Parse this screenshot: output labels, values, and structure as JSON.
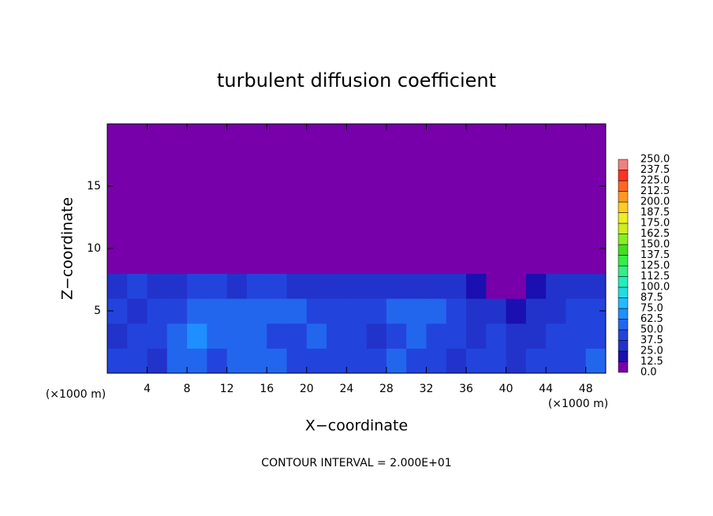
{
  "chart_data": {
    "type": "heatmap",
    "title": "turbulent diffusion coefficient",
    "xlabel": "X−coordinate",
    "ylabel": "Z−coordinate",
    "xunit": "(×1000 m)",
    "yunit": "(×1000 m)",
    "note": "CONTOUR INTERVAL = 2.000E+01",
    "xlim": [
      0,
      50
    ],
    "ylim": [
      0,
      20
    ],
    "xticks": [
      4,
      8,
      12,
      16,
      20,
      24,
      28,
      32,
      36,
      40,
      44,
      48
    ],
    "yticks": [
      5,
      10,
      15
    ],
    "x": [
      1,
      3,
      5,
      7,
      9,
      11,
      13,
      15,
      17,
      19,
      21,
      23,
      25,
      27,
      29,
      31,
      33,
      35,
      37,
      39,
      41,
      43,
      45,
      47,
      49
    ],
    "y": [
      1,
      3,
      5,
      7,
      9,
      11,
      13,
      15,
      17,
      19
    ],
    "values": [
      [
        40,
        45,
        35,
        50,
        60,
        40,
        55,
        60,
        50,
        45,
        45,
        40,
        45,
        40,
        50,
        45,
        40,
        35,
        45,
        40,
        35,
        45,
        40,
        45,
        50
      ],
      [
        35,
        40,
        45,
        55,
        65,
        50,
        55,
        60,
        45,
        45,
        50,
        40,
        40,
        35,
        45,
        50,
        45,
        40,
        35,
        40,
        30,
        35,
        40,
        40,
        45
      ],
      [
        40,
        35,
        40,
        45,
        50,
        55,
        50,
        60,
        55,
        50,
        45,
        40,
        45,
        40,
        50,
        55,
        60,
        45,
        35,
        30,
        20,
        30,
        35,
        40,
        40
      ],
      [
        35,
        40,
        30,
        35,
        45,
        40,
        35,
        45,
        40,
        35,
        30,
        25,
        30,
        30,
        25,
        30,
        35,
        25,
        20,
        10,
        0,
        15,
        25,
        30,
        35
      ],
      [
        0,
        0,
        0,
        0,
        0,
        0,
        0,
        0,
        0,
        0,
        0,
        0,
        0,
        0,
        0,
        0,
        0,
        0,
        0,
        0,
        0,
        0,
        0,
        0,
        0
      ],
      [
        0,
        0,
        0,
        0,
        0,
        0,
        0,
        0,
        0,
        0,
        0,
        0,
        0,
        0,
        0,
        0,
        0,
        0,
        0,
        0,
        0,
        0,
        0,
        0,
        0
      ],
      [
        0,
        0,
        0,
        0,
        0,
        0,
        0,
        0,
        0,
        0,
        0,
        0,
        0,
        0,
        0,
        0,
        0,
        0,
        0,
        0,
        0,
        0,
        0,
        0,
        0
      ],
      [
        0,
        0,
        0,
        0,
        0,
        0,
        0,
        0,
        0,
        0,
        0,
        0,
        0,
        0,
        0,
        0,
        0,
        0,
        0,
        0,
        0,
        0,
        0,
        0,
        0
      ],
      [
        0,
        0,
        0,
        0,
        0,
        0,
        0,
        0,
        0,
        0,
        0,
        0,
        0,
        0,
        0,
        0,
        0,
        0,
        0,
        0,
        0,
        0,
        0,
        0,
        0
      ],
      [
        0,
        0,
        0,
        0,
        0,
        0,
        0,
        0,
        0,
        0,
        0,
        0,
        0,
        0,
        0,
        0,
        0,
        0,
        0,
        0,
        0,
        0,
        0,
        0,
        0
      ]
    ],
    "colorbar": {
      "levels": [
        {
          "value": 0,
          "label": "0.0"
        },
        12.5,
        {
          "value": 25,
          "label": "25.0"
        },
        37.5,
        {
          "value": 50,
          "label": "50.0"
        },
        62.5,
        {
          "value": 75,
          "label": "75.0"
        },
        87.5,
        {
          "value": 100,
          "label": "100.0"
        },
        112.5,
        {
          "value": 125,
          "label": "125.0"
        },
        137.5,
        {
          "value": 150,
          "label": "150.0"
        },
        162.5,
        {
          "value": 175,
          "label": "175.0"
        },
        187.5,
        {
          "value": 200,
          "label": "200.0"
        },
        212.5,
        {
          "value": 225,
          "label": "225.0"
        },
        237.5,
        {
          "value": 250,
          "label": "250.0"
        }
      ],
      "colors": [
        "#7700aa",
        "#1a0fb0",
        "#2233cc",
        "#2244dd",
        "#2266ee",
        "#1f8fff",
        "#22bbff",
        "#22dddd",
        "#22eebb",
        "#33ee88",
        "#33ee44",
        "#44dd22",
        "#88ee22",
        "#ccee22",
        "#eeee22",
        "#ffcc22",
        "#ff9922",
        "#ff6622",
        "#ff3322",
        "#f08080"
      ]
    }
  }
}
